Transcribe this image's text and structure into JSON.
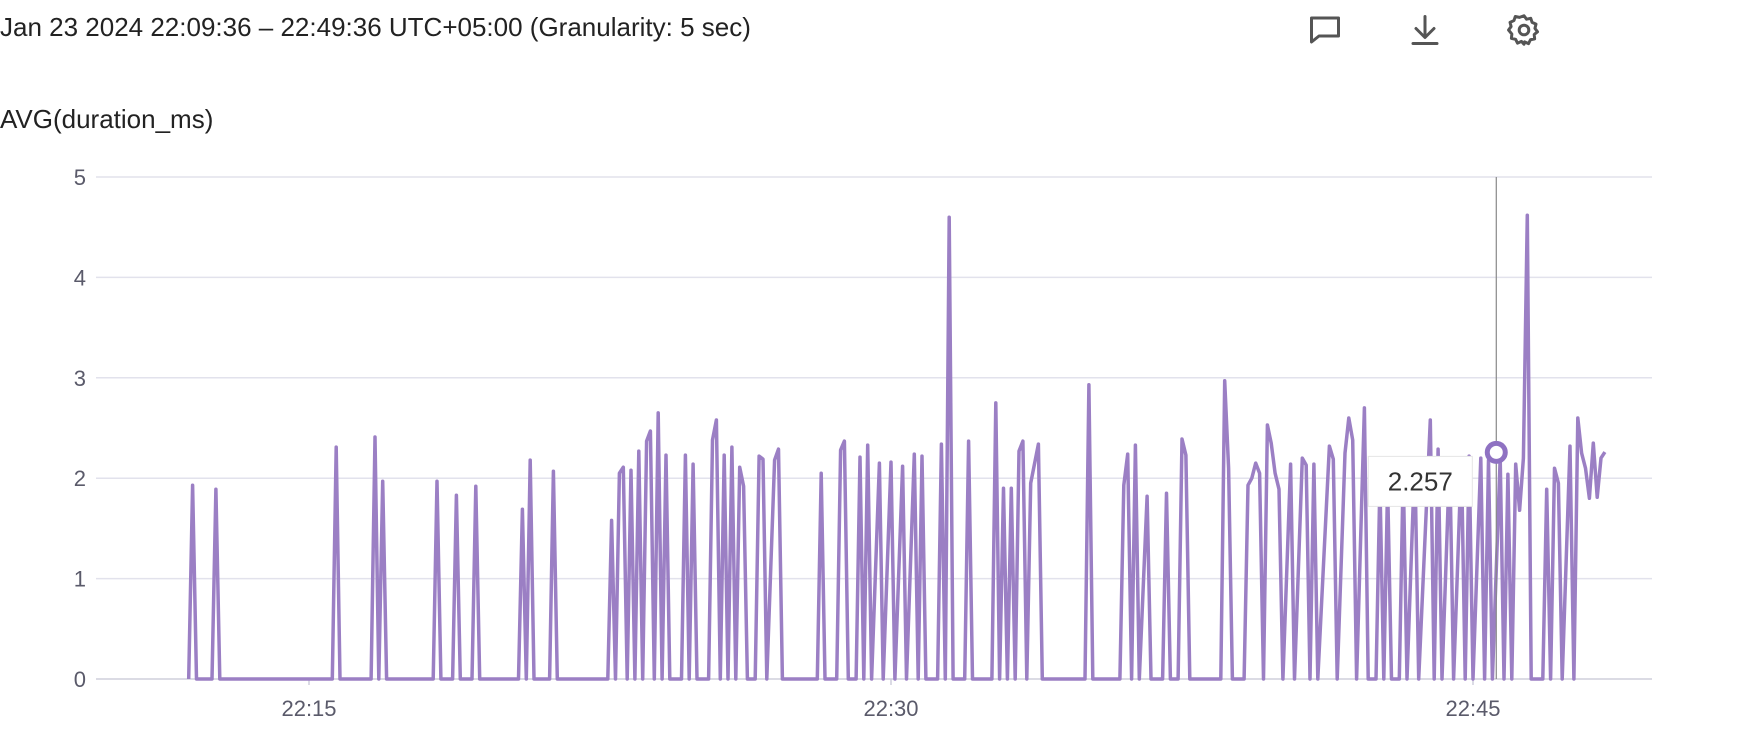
{
  "header": {
    "time_range": "Jan 23 2024 22:09:36 – 22:49:36 UTC+05:00 (Granularity: 5 sec)",
    "icons": [
      "comment-icon",
      "download-icon",
      "settings-icon"
    ]
  },
  "chart_data": {
    "type": "line",
    "title": "",
    "ylabel": "AVG(duration_ms)",
    "xlabel": "",
    "ylim": [
      0,
      5
    ],
    "y_ticks": [
      "0",
      "1",
      "2",
      "3",
      "4",
      "5"
    ],
    "x_ticks": [
      "22:15",
      "22:30",
      "22:45"
    ],
    "grid": true,
    "x_unit": "minutes past 22:00",
    "series": [
      {
        "color": "#9b7fc4",
        "points": [
          [
            11.9,
            0
          ],
          [
            12.0,
            1.93
          ],
          [
            12.1,
            0
          ],
          [
            12.5,
            0
          ],
          [
            12.6,
            1.89
          ],
          [
            12.7,
            0
          ],
          [
            15.6,
            0
          ],
          [
            15.7,
            2.31
          ],
          [
            15.8,
            0
          ],
          [
            16.6,
            0
          ],
          [
            16.7,
            2.41
          ],
          [
            16.8,
            0
          ],
          [
            16.9,
            1.97
          ],
          [
            17.0,
            0
          ],
          [
            18.2,
            0
          ],
          [
            18.3,
            1.97
          ],
          [
            18.4,
            0
          ],
          [
            18.7,
            0
          ],
          [
            18.8,
            1.83
          ],
          [
            18.9,
            0
          ],
          [
            19.2,
            0
          ],
          [
            19.3,
            1.92
          ],
          [
            19.4,
            0
          ],
          [
            20.4,
            0
          ],
          [
            20.5,
            1.69
          ],
          [
            20.6,
            0
          ],
          [
            20.7,
            2.18
          ],
          [
            20.8,
            0
          ],
          [
            21.2,
            0
          ],
          [
            21.3,
            2.07
          ],
          [
            21.4,
            0
          ],
          [
            22.7,
            0
          ],
          [
            22.8,
            1.58
          ],
          [
            22.9,
            0
          ],
          [
            23.0,
            2.05
          ],
          [
            23.1,
            2.11
          ],
          [
            23.2,
            0
          ],
          [
            23.3,
            2.08
          ],
          [
            23.4,
            0
          ],
          [
            23.5,
            2.27
          ],
          [
            23.6,
            0
          ],
          [
            23.7,
            2.37
          ],
          [
            23.8,
            2.47
          ],
          [
            23.9,
            0
          ],
          [
            24.0,
            2.65
          ],
          [
            24.1,
            0
          ],
          [
            24.2,
            2.23
          ],
          [
            24.3,
            0
          ],
          [
            24.6,
            0
          ],
          [
            24.7,
            2.23
          ],
          [
            24.8,
            0
          ],
          [
            24.9,
            2.14
          ],
          [
            25.0,
            0
          ],
          [
            25.3,
            0
          ],
          [
            25.4,
            2.38
          ],
          [
            25.5,
            2.58
          ],
          [
            25.6,
            0
          ],
          [
            25.7,
            2.23
          ],
          [
            25.8,
            0
          ],
          [
            25.9,
            2.31
          ],
          [
            26.0,
            0
          ],
          [
            26.1,
            2.11
          ],
          [
            26.2,
            1.92
          ],
          [
            26.3,
            0
          ],
          [
            26.5,
            0
          ],
          [
            26.6,
            2.22
          ],
          [
            26.7,
            2.19
          ],
          [
            26.8,
            0
          ],
          [
            27.0,
            2.18
          ],
          [
            27.1,
            2.29
          ],
          [
            27.2,
            0
          ],
          [
            28.1,
            0
          ],
          [
            28.2,
            2.05
          ],
          [
            28.3,
            0
          ],
          [
            28.6,
            0
          ],
          [
            28.7,
            2.28
          ],
          [
            28.8,
            2.37
          ],
          [
            28.9,
            0
          ],
          [
            29.1,
            0
          ],
          [
            29.2,
            2.21
          ],
          [
            29.3,
            0
          ],
          [
            29.4,
            2.33
          ],
          [
            29.5,
            0
          ],
          [
            29.7,
            2.15
          ],
          [
            29.8,
            0
          ],
          [
            30.0,
            2.16
          ],
          [
            30.1,
            0
          ],
          [
            30.3,
            2.12
          ],
          [
            30.4,
            0
          ],
          [
            30.6,
            2.24
          ],
          [
            30.7,
            0
          ],
          [
            30.8,
            2.22
          ],
          [
            30.9,
            0
          ],
          [
            31.2,
            0
          ],
          [
            31.3,
            2.34
          ],
          [
            31.4,
            0
          ],
          [
            31.5,
            4.6
          ],
          [
            31.6,
            0
          ],
          [
            31.9,
            0
          ],
          [
            32.0,
            2.37
          ],
          [
            32.1,
            0
          ],
          [
            32.6,
            0
          ],
          [
            32.7,
            2.75
          ],
          [
            32.8,
            0
          ],
          [
            32.9,
            1.9
          ],
          [
            33.0,
            0
          ],
          [
            33.1,
            1.9
          ],
          [
            33.2,
            0
          ],
          [
            33.3,
            2.27
          ],
          [
            33.4,
            2.37
          ],
          [
            33.5,
            0
          ],
          [
            33.6,
            1.95
          ],
          [
            33.8,
            2.34
          ],
          [
            33.9,
            0
          ],
          [
            35.0,
            0
          ],
          [
            35.1,
            2.93
          ],
          [
            35.2,
            0
          ],
          [
            35.9,
            0
          ],
          [
            36.0,
            1.93
          ],
          [
            36.1,
            2.24
          ],
          [
            36.2,
            0
          ],
          [
            36.3,
            2.33
          ],
          [
            36.4,
            0
          ],
          [
            36.6,
            1.82
          ],
          [
            36.7,
            0
          ],
          [
            37.0,
            0
          ],
          [
            37.1,
            1.85
          ],
          [
            37.2,
            0
          ],
          [
            37.4,
            0
          ],
          [
            37.5,
            2.39
          ],
          [
            37.6,
            2.23
          ],
          [
            37.7,
            0
          ],
          [
            38.5,
            0
          ],
          [
            38.6,
            2.97
          ],
          [
            38.7,
            2.1
          ],
          [
            38.8,
            0
          ],
          [
            39.1,
            0
          ],
          [
            39.2,
            1.93
          ],
          [
            39.3,
            2.0
          ],
          [
            39.4,
            2.15
          ],
          [
            39.5,
            2.05
          ],
          [
            39.6,
            0
          ],
          [
            39.7,
            2.53
          ],
          [
            39.8,
            2.35
          ],
          [
            39.9,
            2.05
          ],
          [
            40.0,
            1.89
          ],
          [
            40.1,
            0
          ],
          [
            40.3,
            2.14
          ],
          [
            40.4,
            0
          ],
          [
            40.6,
            2.2
          ],
          [
            40.7,
            2.13
          ],
          [
            40.8,
            0
          ],
          [
            40.9,
            2.14
          ],
          [
            41.0,
            0
          ],
          [
            41.3,
            2.32
          ],
          [
            41.4,
            2.19
          ],
          [
            41.5,
            0
          ],
          [
            41.7,
            2.25
          ],
          [
            41.8,
            2.6
          ],
          [
            41.9,
            2.38
          ],
          [
            42.0,
            0
          ],
          [
            42.2,
            2.7
          ],
          [
            42.3,
            0
          ],
          [
            42.5,
            0
          ],
          [
            42.6,
            1.95
          ],
          [
            42.7,
            0
          ],
          [
            42.8,
            1.93
          ],
          [
            42.9,
            0
          ],
          [
            43.1,
            0
          ],
          [
            43.2,
            2.07
          ],
          [
            43.3,
            0
          ],
          [
            43.5,
            2.2
          ],
          [
            43.6,
            0
          ],
          [
            43.9,
            2.58
          ],
          [
            44.0,
            0
          ],
          [
            44.1,
            2.29
          ],
          [
            44.2,
            0
          ],
          [
            44.4,
            2.2
          ],
          [
            44.5,
            0
          ],
          [
            44.7,
            2.2
          ],
          [
            44.8,
            0
          ],
          [
            44.9,
            2.22
          ],
          [
            45.0,
            0
          ],
          [
            45.2,
            2.2
          ],
          [
            45.3,
            0
          ],
          [
            45.4,
            2.18
          ],
          [
            45.5,
            0
          ],
          [
            45.7,
            2.2
          ],
          [
            45.8,
            0
          ],
          [
            45.9,
            2.04
          ],
          [
            46.0,
            0
          ],
          [
            46.1,
            2.14
          ],
          [
            46.2,
            1.68
          ],
          [
            46.3,
            2.2
          ],
          [
            46.4,
            4.62
          ],
          [
            46.5,
            0
          ],
          [
            46.8,
            0
          ],
          [
            46.9,
            1.89
          ],
          [
            47.0,
            0
          ],
          [
            47.1,
            2.1
          ],
          [
            47.2,
            1.95
          ],
          [
            47.3,
            0
          ],
          [
            47.5,
            2.32
          ],
          [
            47.6,
            0
          ],
          [
            47.7,
            2.6
          ],
          [
            47.8,
            2.25
          ],
          [
            47.9,
            2.1
          ],
          [
            48.0,
            1.8
          ],
          [
            48.1,
            2.35
          ],
          [
            48.2,
            1.81
          ],
          [
            48.3,
            2.2
          ],
          [
            48.4,
            2.26
          ]
        ]
      }
    ],
    "hover": {
      "x": 45.6,
      "y": 2.257,
      "label": "2.257"
    }
  }
}
